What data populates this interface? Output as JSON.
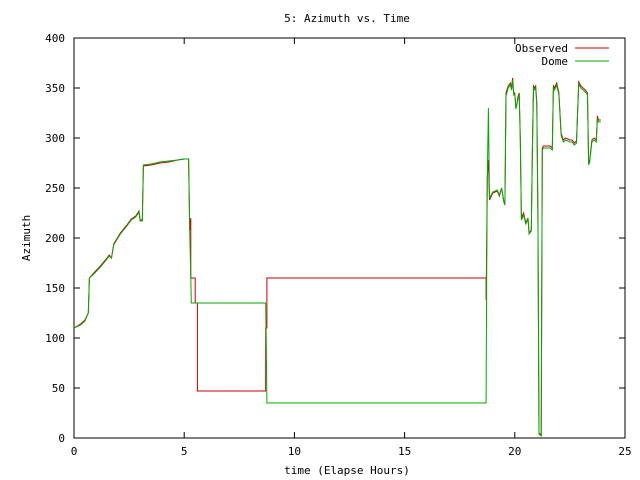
{
  "chart_data": {
    "type": "line",
    "title": "5: Azimuth vs. Time",
    "xlabel": "time (Elapse Hours)",
    "ylabel": "Azimuth",
    "xlim": [
      0,
      25
    ],
    "ylim": [
      0,
      400
    ],
    "x_ticks": [
      0,
      5,
      10,
      15,
      20,
      25
    ],
    "y_ticks": [
      0,
      50,
      100,
      150,
      200,
      250,
      300,
      350,
      400
    ],
    "grid": false,
    "legend": "top-right",
    "series": [
      {
        "name": "Observed",
        "color": "#cc0000",
        "points": [
          [
            0,
            110
          ],
          [
            0.3,
            114
          ],
          [
            0.5,
            118
          ],
          [
            0.65,
            125
          ],
          [
            0.7,
            160
          ],
          [
            0.9,
            165
          ],
          [
            1.2,
            172
          ],
          [
            1.5,
            180
          ],
          [
            1.6,
            183
          ],
          [
            1.7,
            180
          ],
          [
            1.8,
            194
          ],
          [
            2.1,
            205
          ],
          [
            2.4,
            213
          ],
          [
            2.6,
            219
          ],
          [
            2.8,
            222
          ],
          [
            2.95,
            227
          ],
          [
            3.0,
            218
          ],
          [
            3.1,
            218
          ],
          [
            3.15,
            272
          ],
          [
            3.5,
            273
          ],
          [
            3.9,
            275
          ],
          [
            4.3,
            276
          ],
          [
            4.7,
            278
          ],
          [
            5.0,
            279
          ],
          [
            5.2,
            279
          ],
          [
            5.25,
            208
          ],
          [
            5.3,
            220
          ],
          [
            5.3,
            160
          ],
          [
            5.4,
            160
          ],
          [
            5.5,
            160
          ],
          [
            5.5,
            135
          ],
          [
            5.6,
            135
          ],
          [
            5.6,
            47
          ],
          [
            8.7,
            47
          ],
          [
            8.7,
            110
          ],
          [
            8.75,
            110
          ],
          [
            8.75,
            160
          ],
          [
            18.7,
            160
          ],
          [
            18.7,
            138
          ],
          [
            18.72,
            185
          ],
          [
            18.75,
            262
          ],
          [
            18.8,
            278
          ],
          [
            18.85,
            238
          ],
          [
            19.0,
            245
          ],
          [
            19.2,
            247
          ],
          [
            19.3,
            242
          ],
          [
            19.4,
            250
          ],
          [
            19.5,
            237
          ],
          [
            19.55,
            233
          ],
          [
            19.6,
            345
          ],
          [
            19.7,
            352
          ],
          [
            19.8,
            355
          ],
          [
            19.85,
            350
          ],
          [
            19.9,
            360
          ],
          [
            19.95,
            345
          ],
          [
            20.0,
            345
          ],
          [
            20.05,
            330
          ],
          [
            20.1,
            335
          ],
          [
            20.15,
            342
          ],
          [
            20.2,
            345
          ],
          [
            20.25,
            300
          ],
          [
            20.3,
            220
          ],
          [
            20.4,
            225
          ],
          [
            20.5,
            215
          ],
          [
            20.6,
            220
          ],
          [
            20.65,
            205
          ],
          [
            20.75,
            208
          ],
          [
            20.8,
            290
          ],
          [
            20.85,
            352
          ],
          [
            20.9,
            350
          ],
          [
            20.95,
            352
          ],
          [
            21.0,
            335
          ],
          [
            21.05,
            225
          ],
          [
            21.1,
            5
          ],
          [
            21.2,
            3
          ],
          [
            21.25,
            290
          ],
          [
            21.3,
            292
          ],
          [
            21.6,
            292
          ],
          [
            21.7,
            290
          ],
          [
            21.75,
            352
          ],
          [
            21.8,
            350
          ],
          [
            21.9,
            355
          ],
          [
            22.0,
            345
          ],
          [
            22.1,
            305
          ],
          [
            22.2,
            298
          ],
          [
            22.3,
            300
          ],
          [
            22.5,
            298
          ],
          [
            22.6,
            298
          ],
          [
            22.7,
            295
          ],
          [
            22.8,
            297
          ],
          [
            22.9,
            356
          ],
          [
            23.0,
            352
          ],
          [
            23.1,
            350
          ],
          [
            23.2,
            348
          ],
          [
            23.3,
            345
          ],
          [
            23.35,
            275
          ],
          [
            23.4,
            278
          ],
          [
            23.5,
            298
          ],
          [
            23.6,
            300
          ],
          [
            23.7,
            298
          ],
          [
            23.75,
            322
          ],
          [
            23.8,
            318
          ],
          [
            23.9,
            318
          ]
        ]
      },
      {
        "name": "Dome",
        "color": "#00aa00",
        "points": [
          [
            0,
            110
          ],
          [
            0.3,
            113
          ],
          [
            0.5,
            117
          ],
          [
            0.65,
            125
          ],
          [
            0.7,
            160
          ],
          [
            0.9,
            164
          ],
          [
            1.2,
            171
          ],
          [
            1.5,
            179
          ],
          [
            1.6,
            182
          ],
          [
            1.7,
            180
          ],
          [
            1.8,
            193
          ],
          [
            2.1,
            204
          ],
          [
            2.4,
            212
          ],
          [
            2.6,
            218
          ],
          [
            2.8,
            221
          ],
          [
            2.95,
            226
          ],
          [
            3.0,
            217
          ],
          [
            3.1,
            217
          ],
          [
            3.15,
            273
          ],
          [
            3.5,
            274
          ],
          [
            3.9,
            276
          ],
          [
            4.3,
            277
          ],
          [
            4.7,
            278
          ],
          [
            5.0,
            279
          ],
          [
            5.2,
            279
          ],
          [
            5.25,
            208
          ],
          [
            5.3,
            160
          ],
          [
            5.32,
            135
          ],
          [
            8.7,
            135
          ],
          [
            8.72,
            100
          ],
          [
            8.75,
            35
          ],
          [
            18.7,
            35
          ],
          [
            18.72,
            150
          ],
          [
            18.75,
            260
          ],
          [
            18.8,
            330
          ],
          [
            18.85,
            240
          ],
          [
            19.0,
            246
          ],
          [
            19.2,
            248
          ],
          [
            19.3,
            243
          ],
          [
            19.4,
            250
          ],
          [
            19.5,
            236
          ],
          [
            19.55,
            233
          ],
          [
            19.6,
            342
          ],
          [
            19.7,
            350
          ],
          [
            19.8,
            353
          ],
          [
            19.85,
            348
          ],
          [
            19.9,
            358
          ],
          [
            19.95,
            343
          ],
          [
            20.0,
            344
          ],
          [
            20.05,
            329
          ],
          [
            20.1,
            334
          ],
          [
            20.15,
            340
          ],
          [
            20.2,
            344
          ],
          [
            20.25,
            298
          ],
          [
            20.3,
            218
          ],
          [
            20.4,
            223
          ],
          [
            20.5,
            214
          ],
          [
            20.6,
            219
          ],
          [
            20.65,
            204
          ],
          [
            20.75,
            207
          ],
          [
            20.8,
            288
          ],
          [
            20.85,
            350
          ],
          [
            20.9,
            348
          ],
          [
            20.95,
            350
          ],
          [
            21.0,
            333
          ],
          [
            21.05,
            223
          ],
          [
            21.1,
            4
          ],
          [
            21.2,
            2
          ],
          [
            21.25,
            288
          ],
          [
            21.3,
            290
          ],
          [
            21.6,
            290
          ],
          [
            21.7,
            288
          ],
          [
            21.75,
            350
          ],
          [
            21.8,
            348
          ],
          [
            21.9,
            353
          ],
          [
            22.0,
            343
          ],
          [
            22.1,
            303
          ],
          [
            22.2,
            296
          ],
          [
            22.3,
            298
          ],
          [
            22.5,
            296
          ],
          [
            22.6,
            296
          ],
          [
            22.7,
            293
          ],
          [
            22.8,
            295
          ],
          [
            22.9,
            354
          ],
          [
            23.0,
            350
          ],
          [
            23.1,
            348
          ],
          [
            23.2,
            346
          ],
          [
            23.3,
            343
          ],
          [
            23.35,
            273
          ],
          [
            23.4,
            276
          ],
          [
            23.5,
            296
          ],
          [
            23.6,
            298
          ],
          [
            23.7,
            296
          ],
          [
            23.75,
            320
          ],
          [
            23.8,
            316
          ],
          [
            23.9,
            316
          ]
        ]
      }
    ]
  }
}
